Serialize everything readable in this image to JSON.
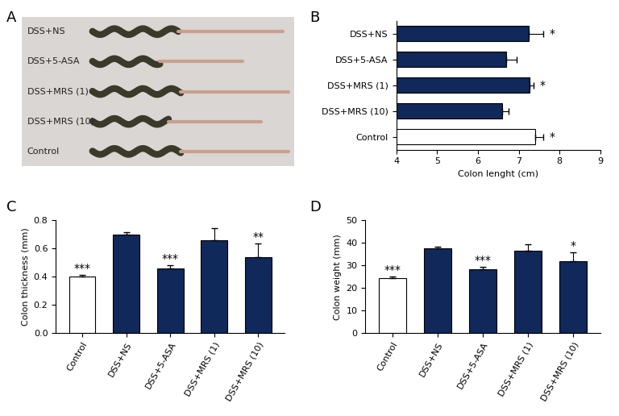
{
  "image_panel": {
    "label": "A",
    "rows": [
      "DSS+NS",
      "DSS+5-ASA",
      "DSS+MRS (1)",
      "DSS+MRS (10)",
      "Control"
    ]
  },
  "chart_data": [
    {
      "type": "bar",
      "title": "B",
      "orientation": "horizontal",
      "categories": [
        "DSS+NS",
        "DSS+5-ASA",
        "DSS+MRS (1)",
        "DSS+MRS (10)",
        "Control"
      ],
      "values": [
        7.25,
        6.7,
        7.27,
        6.6,
        7.4
      ],
      "errors": [
        0.35,
        0.25,
        0.1,
        0.15,
        0.2
      ],
      "annotations": [
        "*",
        null,
        "*",
        null,
        "*"
      ],
      "colors": [
        "#10285a",
        "#10285a",
        "#10285a",
        "#10285a",
        "#ffffff"
      ],
      "xlabel": "Colon lenght (cm)",
      "xlim": [
        4,
        9
      ],
      "xticks": [
        4,
        5,
        6,
        7,
        8,
        9
      ]
    },
    {
      "type": "bar",
      "title": "C",
      "categories": [
        "Control",
        "DSS+NS",
        "DSS+5-ASA",
        "DSS+MRS (1)",
        "DSS+MRS (10)"
      ],
      "values": [
        0.4,
        0.7,
        0.46,
        0.66,
        0.54
      ],
      "errors": [
        0.01,
        0.015,
        0.02,
        0.085,
        0.095
      ],
      "annotations": [
        "***",
        null,
        "***",
        null,
        "**"
      ],
      "colors": [
        "#ffffff",
        "#10285a",
        "#10285a",
        "#10285a",
        "#10285a"
      ],
      "ylabel": "Colon thickness (mm)",
      "ylim": [
        0.0,
        0.8
      ],
      "yticks": [
        0.0,
        0.2,
        0.4,
        0.6,
        0.8
      ]
    },
    {
      "type": "bar",
      "title": "D",
      "categories": [
        "Control",
        "DSS+NS",
        "DSS+5-ASA",
        "DSS+MRS (1)",
        "DSS+MRS (10)"
      ],
      "values": [
        24.2,
        37.5,
        28.2,
        36.7,
        32.0
      ],
      "errors": [
        0.7,
        1.0,
        1.1,
        2.7,
        3.8
      ],
      "annotations": [
        "***",
        null,
        "***",
        null,
        "*"
      ],
      "colors": [
        "#ffffff",
        "#10285a",
        "#10285a",
        "#10285a",
        "#10285a"
      ],
      "ylabel": "Colon weight (mm)",
      "ylim": [
        0,
        50
      ],
      "yticks": [
        0,
        10,
        20,
        30,
        40,
        50
      ]
    }
  ]
}
